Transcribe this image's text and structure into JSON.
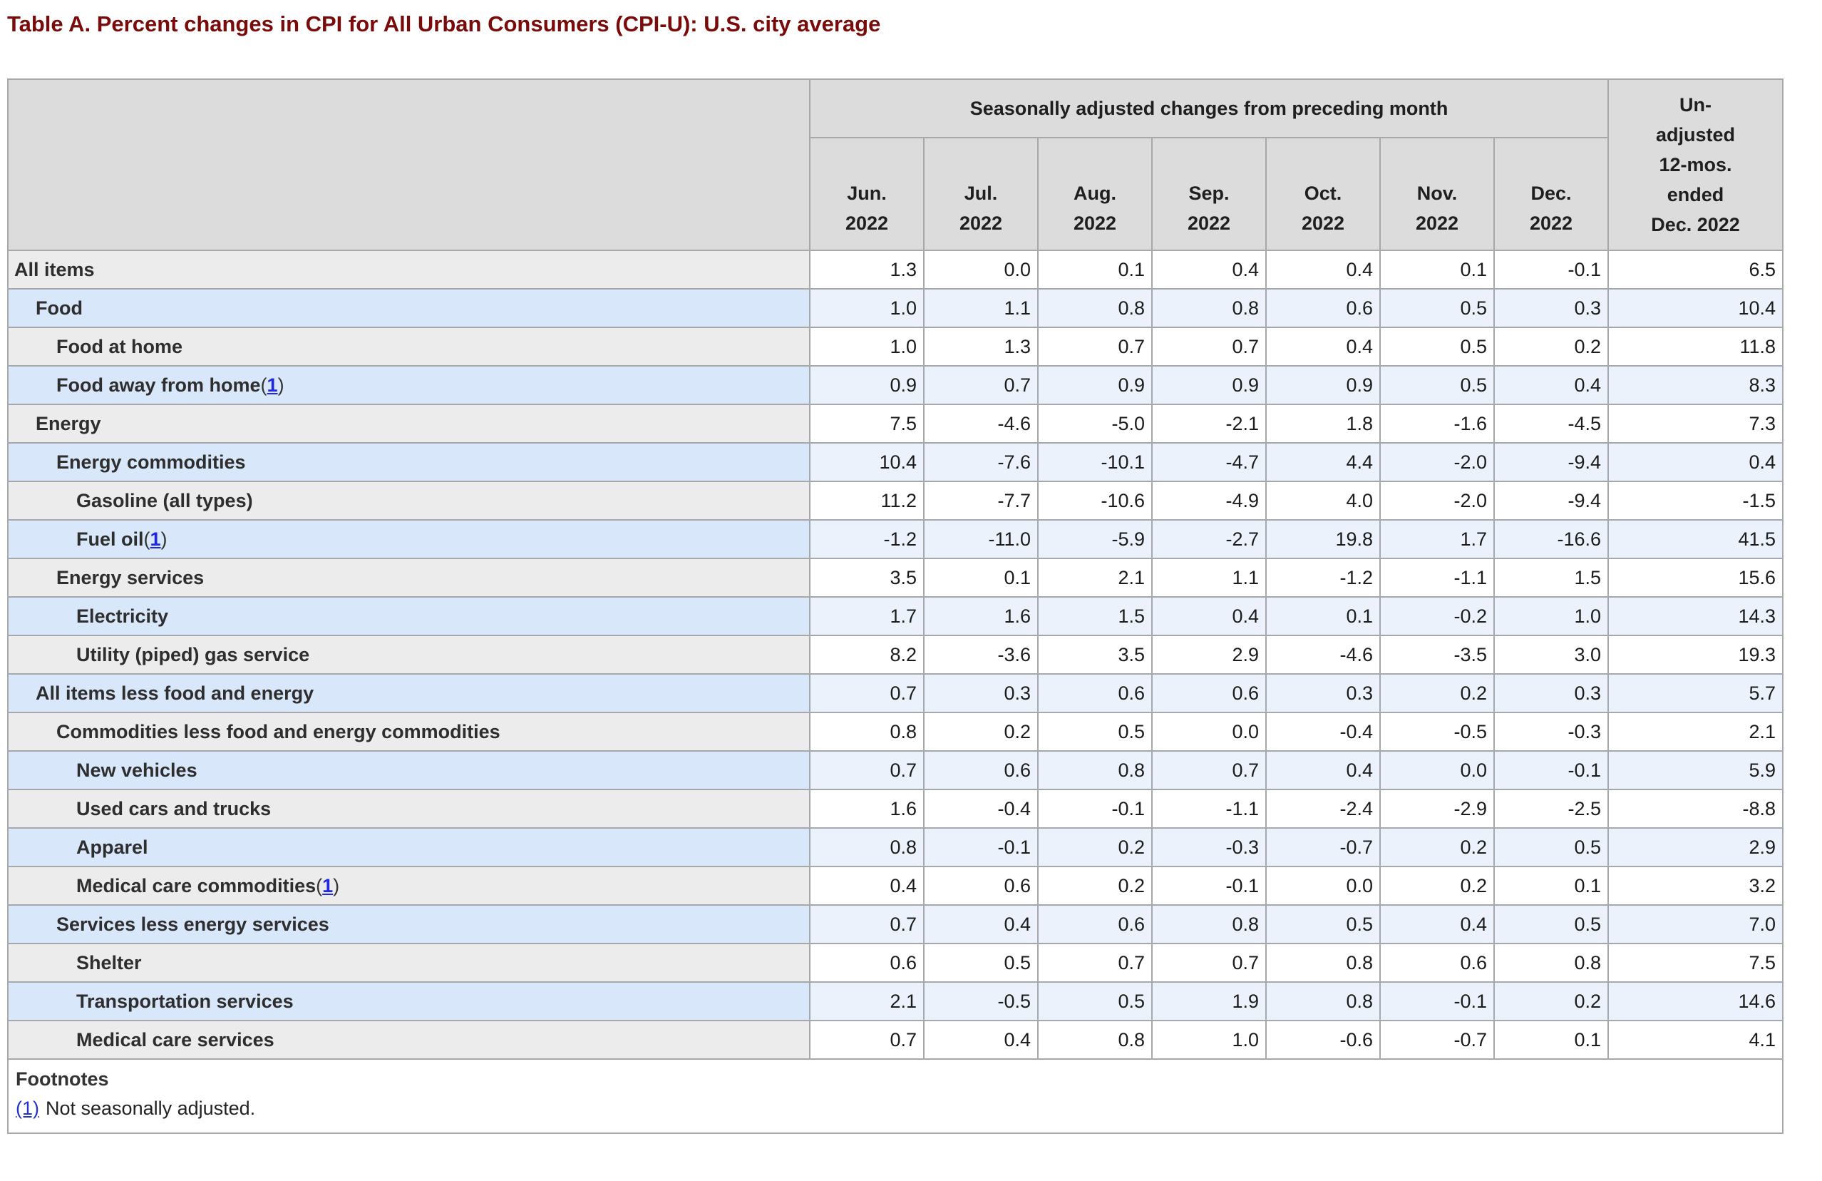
{
  "page_title": "Table A. Percent changes in CPI for All Urban Consumers (CPI-U): U.S. city average",
  "table": {
    "group_header": "Seasonally adjusted changes from preceding month",
    "unadjusted_header": "Un-\nadjusted\n12-mos.\nended\nDec. 2022",
    "month_headers": [
      "Jun.\n2022",
      "Jul.\n2022",
      "Aug.\n2022",
      "Sep.\n2022",
      "Oct.\n2022",
      "Nov.\n2022",
      "Dec.\n2022"
    ],
    "rows": [
      {
        "label": "All items",
        "indent": 0,
        "footnote": "",
        "values": [
          "1.3",
          "0.0",
          "0.1",
          "0.4",
          "0.4",
          "0.1",
          "-0.1",
          "6.5"
        ]
      },
      {
        "label": "Food",
        "indent": 1,
        "footnote": "",
        "values": [
          "1.0",
          "1.1",
          "0.8",
          "0.8",
          "0.6",
          "0.5",
          "0.3",
          "10.4"
        ]
      },
      {
        "label": "Food at home",
        "indent": 2,
        "footnote": "",
        "values": [
          "1.0",
          "1.3",
          "0.7",
          "0.7",
          "0.4",
          "0.5",
          "0.2",
          "11.8"
        ]
      },
      {
        "label": "Food away from home",
        "indent": 2,
        "footnote": "1",
        "values": [
          "0.9",
          "0.7",
          "0.9",
          "0.9",
          "0.9",
          "0.5",
          "0.4",
          "8.3"
        ]
      },
      {
        "label": "Energy",
        "indent": 1,
        "footnote": "",
        "values": [
          "7.5",
          "-4.6",
          "-5.0",
          "-2.1",
          "1.8",
          "-1.6",
          "-4.5",
          "7.3"
        ]
      },
      {
        "label": "Energy commodities",
        "indent": 2,
        "footnote": "",
        "values": [
          "10.4",
          "-7.6",
          "-10.1",
          "-4.7",
          "4.4",
          "-2.0",
          "-9.4",
          "0.4"
        ]
      },
      {
        "label": "Gasoline (all types)",
        "indent": 3,
        "footnote": "",
        "values": [
          "11.2",
          "-7.7",
          "-10.6",
          "-4.9",
          "4.0",
          "-2.0",
          "-9.4",
          "-1.5"
        ]
      },
      {
        "label": "Fuel oil",
        "indent": 3,
        "footnote": "1",
        "values": [
          "-1.2",
          "-11.0",
          "-5.9",
          "-2.7",
          "19.8",
          "1.7",
          "-16.6",
          "41.5"
        ]
      },
      {
        "label": "Energy services",
        "indent": 2,
        "footnote": "",
        "values": [
          "3.5",
          "0.1",
          "2.1",
          "1.1",
          "-1.2",
          "-1.1",
          "1.5",
          "15.6"
        ]
      },
      {
        "label": "Electricity",
        "indent": 3,
        "footnote": "",
        "values": [
          "1.7",
          "1.6",
          "1.5",
          "0.4",
          "0.1",
          "-0.2",
          "1.0",
          "14.3"
        ]
      },
      {
        "label": "Utility (piped) gas service",
        "indent": 3,
        "footnote": "",
        "values": [
          "8.2",
          "-3.6",
          "3.5",
          "2.9",
          "-4.6",
          "-3.5",
          "3.0",
          "19.3"
        ]
      },
      {
        "label": "All items less food and energy",
        "indent": 1,
        "footnote": "",
        "values": [
          "0.7",
          "0.3",
          "0.6",
          "0.6",
          "0.3",
          "0.2",
          "0.3",
          "5.7"
        ]
      },
      {
        "label": "Commodities less food and energy commodities",
        "indent": 2,
        "footnote": "",
        "values": [
          "0.8",
          "0.2",
          "0.5",
          "0.0",
          "-0.4",
          "-0.5",
          "-0.3",
          "2.1"
        ]
      },
      {
        "label": "New vehicles",
        "indent": 3,
        "footnote": "",
        "values": [
          "0.7",
          "0.6",
          "0.8",
          "0.7",
          "0.4",
          "0.0",
          "-0.1",
          "5.9"
        ]
      },
      {
        "label": "Used cars and trucks",
        "indent": 3,
        "footnote": "",
        "values": [
          "1.6",
          "-0.4",
          "-0.1",
          "-1.1",
          "-2.4",
          "-2.9",
          "-2.5",
          "-8.8"
        ]
      },
      {
        "label": "Apparel",
        "indent": 3,
        "footnote": "",
        "values": [
          "0.8",
          "-0.1",
          "0.2",
          "-0.3",
          "-0.7",
          "0.2",
          "0.5",
          "2.9"
        ]
      },
      {
        "label": "Medical care commodities",
        "indent": 3,
        "footnote": "1",
        "values": [
          "0.4",
          "0.6",
          "0.2",
          "-0.1",
          "0.0",
          "0.2",
          "0.1",
          "3.2"
        ]
      },
      {
        "label": "Services less energy services",
        "indent": 2,
        "footnote": "",
        "values": [
          "0.7",
          "0.4",
          "0.6",
          "0.8",
          "0.5",
          "0.4",
          "0.5",
          "7.0"
        ]
      },
      {
        "label": "Shelter",
        "indent": 3,
        "footnote": "",
        "values": [
          "0.6",
          "0.5",
          "0.7",
          "0.7",
          "0.8",
          "0.6",
          "0.8",
          "7.5"
        ]
      },
      {
        "label": "Transportation services",
        "indent": 3,
        "footnote": "",
        "values": [
          "2.1",
          "-0.5",
          "0.5",
          "1.9",
          "0.8",
          "-0.1",
          "0.2",
          "14.6"
        ]
      },
      {
        "label": "Medical care services",
        "indent": 3,
        "footnote": "",
        "values": [
          "0.7",
          "0.4",
          "0.8",
          "1.0",
          "-0.6",
          "-0.7",
          "0.1",
          "4.1"
        ]
      }
    ],
    "footnotes": {
      "heading": "Footnotes",
      "items": [
        {
          "link": "(1)",
          "text": "Not seasonally adjusted."
        }
      ]
    }
  },
  "colors": {
    "title": "#7a0b0b",
    "header_bg": "#dcdcdc",
    "plain_label_bg": "#ececec",
    "plain_data_bg": "#ffffff",
    "blue_label_bg": "#d9e7fb",
    "blue_data_bg": "#ecf2fc",
    "border": "#a6a8ab",
    "link": "#2128e0"
  }
}
